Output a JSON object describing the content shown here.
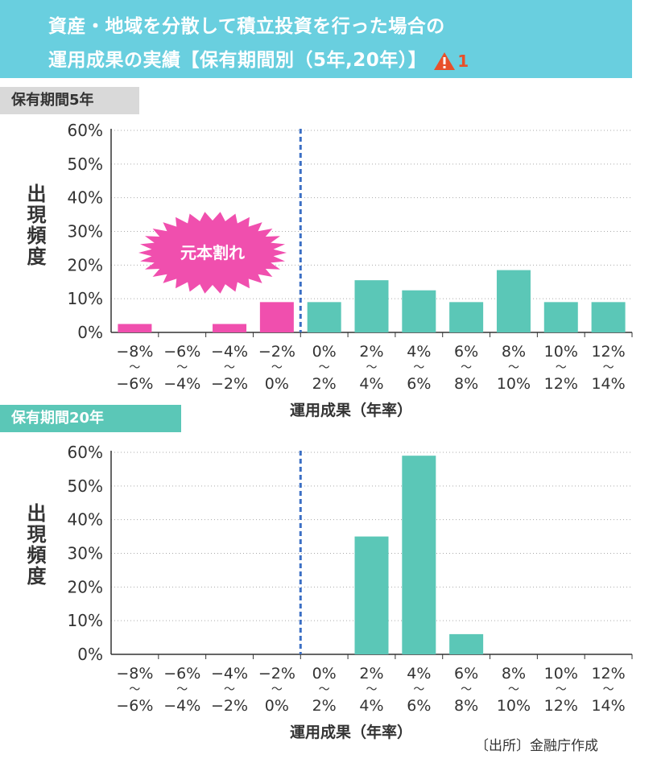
{
  "header": {
    "line1": "資産・地域を分散して積立投資を行った場合の",
    "line2": "運用成果の実績【保有期間別（5年,20年）】",
    "warning_number": "1"
  },
  "source": "〔出所〕金融庁作成",
  "colors": {
    "header_bg": "#69cfdf",
    "loss_bar": "#f04fae",
    "gain_bar": "#5bc7b7",
    "divider": "#3b6fc4",
    "burst": "#f04fae"
  },
  "loss_badge": "元本割れ",
  "chart_data": [
    {
      "type": "bar",
      "title": "保有期間5年",
      "ylabel": "出現頻度",
      "xlabel": "運用成果（年率）",
      "ylim": [
        0,
        60
      ],
      "yticks": [
        "60%",
        "50%",
        "40%",
        "30%",
        "20%",
        "10%",
        "0%"
      ],
      "categories": [
        [
          "−8%",
          "〜",
          "−6%"
        ],
        [
          "−6%",
          "〜",
          "−4%"
        ],
        [
          "−4%",
          "〜",
          "−2%"
        ],
        [
          "−2%",
          "〜",
          "0%"
        ],
        [
          "0%",
          "〜",
          "2%"
        ],
        [
          "2%",
          "〜",
          "4%"
        ],
        [
          "4%",
          "〜",
          "6%"
        ],
        [
          "6%",
          "〜",
          "8%"
        ],
        [
          "8%",
          "〜",
          "10%"
        ],
        [
          "10%",
          "〜",
          "12%"
        ],
        [
          "12%",
          "〜",
          "14%"
        ]
      ],
      "values": [
        2.5,
        0,
        2.5,
        9,
        9,
        15.5,
        12.5,
        9,
        18.5,
        9,
        9
      ],
      "loss_categories": 4,
      "grid": true
    },
    {
      "type": "bar",
      "title": "保有期間20年",
      "ylabel": "出現頻度",
      "xlabel": "運用成果（年率）",
      "ylim": [
        0,
        60
      ],
      "yticks": [
        "60%",
        "50%",
        "40%",
        "30%",
        "20%",
        "10%",
        "0%"
      ],
      "categories": [
        [
          "−8%",
          "〜",
          "−6%"
        ],
        [
          "−6%",
          "〜",
          "−4%"
        ],
        [
          "−4%",
          "〜",
          "−2%"
        ],
        [
          "−2%",
          "〜",
          "0%"
        ],
        [
          "0%",
          "〜",
          "2%"
        ],
        [
          "2%",
          "〜",
          "4%"
        ],
        [
          "4%",
          "〜",
          "6%"
        ],
        [
          "6%",
          "〜",
          "8%"
        ],
        [
          "8%",
          "〜",
          "10%"
        ],
        [
          "10%",
          "〜",
          "12%"
        ],
        [
          "12%",
          "〜",
          "14%"
        ]
      ],
      "values": [
        0,
        0,
        0,
        0,
        0,
        35,
        59,
        6,
        0,
        0,
        0
      ],
      "loss_categories": 4,
      "grid": true
    }
  ]
}
